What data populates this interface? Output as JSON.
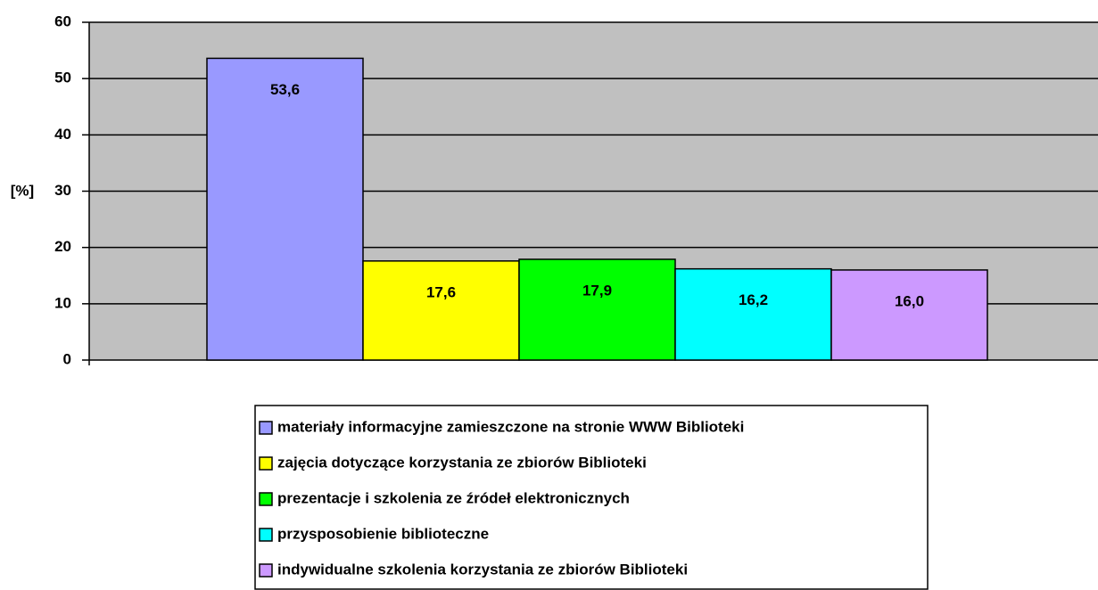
{
  "chart_data": {
    "type": "bar",
    "ylabel": "[%]",
    "categories": [
      null
    ],
    "series": [
      {
        "name": "materiały informacyjne zamieszczone na stronie WWW Biblioteki",
        "color": "#9999ff",
        "values": [
          53.6
        ],
        "value_labels": [
          "53,6"
        ]
      },
      {
        "name": "zajęcia dotyczące korzystania ze zbiorów Biblioteki",
        "color": "#ffff00",
        "values": [
          17.6
        ],
        "value_labels": [
          "17,6"
        ]
      },
      {
        "name": "prezentacje i szkolenia ze źródeł elektronicznych",
        "color": "#00ff00",
        "values": [
          17.9
        ],
        "value_labels": [
          "17,9"
        ]
      },
      {
        "name": "przysposobienie biblioteczne",
        "color": "#00ffff",
        "values": [
          16.2
        ],
        "value_labels": [
          "16,2"
        ]
      },
      {
        "name": "indywidualne szkolenia korzystania ze zbiorów Biblioteki",
        "color": "#cc99ff",
        "values": [
          16.0
        ],
        "value_labels": [
          "16,0"
        ]
      }
    ],
    "ylim": [
      0,
      60
    ],
    "yticks": [
      0,
      10,
      20,
      30,
      40,
      50,
      60
    ],
    "grid": true,
    "plot_background": "#c0c0c0",
    "legend": "bottom"
  }
}
